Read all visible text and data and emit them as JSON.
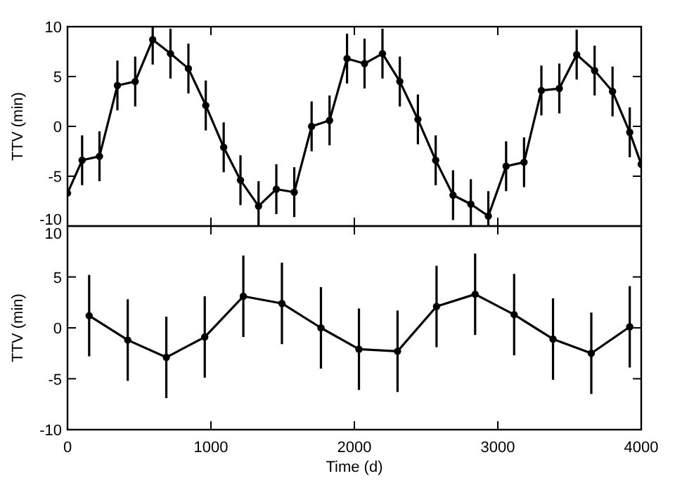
{
  "chart_data": [
    {
      "type": "line",
      "ylabel": "TTV (min)",
      "xlim": [
        0,
        4000
      ],
      "xticks": [
        0,
        1000,
        2000,
        3000,
        4000
      ],
      "ylim": [
        -10,
        10
      ],
      "yticks": [
        -10,
        -5,
        0,
        5,
        10
      ],
      "tick_labels": "y",
      "marker": "circle",
      "line_style": "solid",
      "grid": false,
      "series": [
        {
          "color": "#000000",
          "x": [
            0,
            102,
            223,
            348,
            472,
            594,
            718,
            843,
            964,
            1089,
            1206,
            1332,
            1456,
            1581,
            1702,
            1827,
            1949,
            2071,
            2196,
            2317,
            2443,
            2567,
            2688,
            2812,
            2934,
            3058,
            3183,
            3304,
            3429,
            3550,
            3675,
            3800,
            3920,
            4000
          ],
          "values": [
            -6.7,
            -3.4,
            -3.0,
            4.1,
            4.5,
            8.7,
            7.3,
            5.8,
            2.1,
            -2.1,
            -5.4,
            -8.0,
            -6.3,
            -6.6,
            0.0,
            0.6,
            6.8,
            6.3,
            7.3,
            4.5,
            0.7,
            -3.4,
            -6.9,
            -7.8,
            -9.0,
            -4.0,
            -3.6,
            3.6,
            3.8,
            7.2,
            5.6,
            3.5,
            -0.6,
            -3.8
          ],
          "errors": [
            null,
            2.5,
            2.5,
            2.5,
            2.5,
            2.5,
            2.5,
            2.5,
            2.5,
            2.5,
            2.5,
            2.5,
            2.5,
            2.5,
            2.5,
            2.5,
            2.5,
            2.5,
            2.5,
            2.5,
            2.5,
            2.5,
            2.5,
            2.5,
            2.5,
            2.5,
            2.5,
            2.5,
            2.5,
            2.5,
            2.5,
            2.5,
            2.5,
            null
          ]
        }
      ]
    },
    {
      "type": "line",
      "xlabel": "Time (d)",
      "ylabel": "TTV (min)",
      "xlim": [
        0,
        4000
      ],
      "xticks": [
        0,
        1000,
        2000,
        3000,
        4000
      ],
      "ylim": [
        -10,
        10
      ],
      "yticks": [
        -10,
        -5,
        0,
        5,
        10
      ],
      "marker": "circle",
      "line_style": "solid",
      "grid": false,
      "series": [
        {
          "color": "#000000",
          "x": [
            151,
            420,
            689,
            957,
            1226,
            1495,
            1767,
            2032,
            2301,
            2573,
            2842,
            3114,
            3385,
            3652,
            3920
          ],
          "values": [
            1.2,
            -1.2,
            -2.9,
            -0.9,
            3.1,
            2.4,
            0.0,
            -2.1,
            -2.3,
            2.1,
            3.3,
            1.3,
            -1.1,
            -2.5,
            0.1
          ],
          "errors": [
            4,
            4,
            4,
            4,
            4,
            4,
            4,
            4,
            4,
            4,
            4,
            4,
            4,
            4,
            4
          ]
        }
      ]
    }
  ]
}
